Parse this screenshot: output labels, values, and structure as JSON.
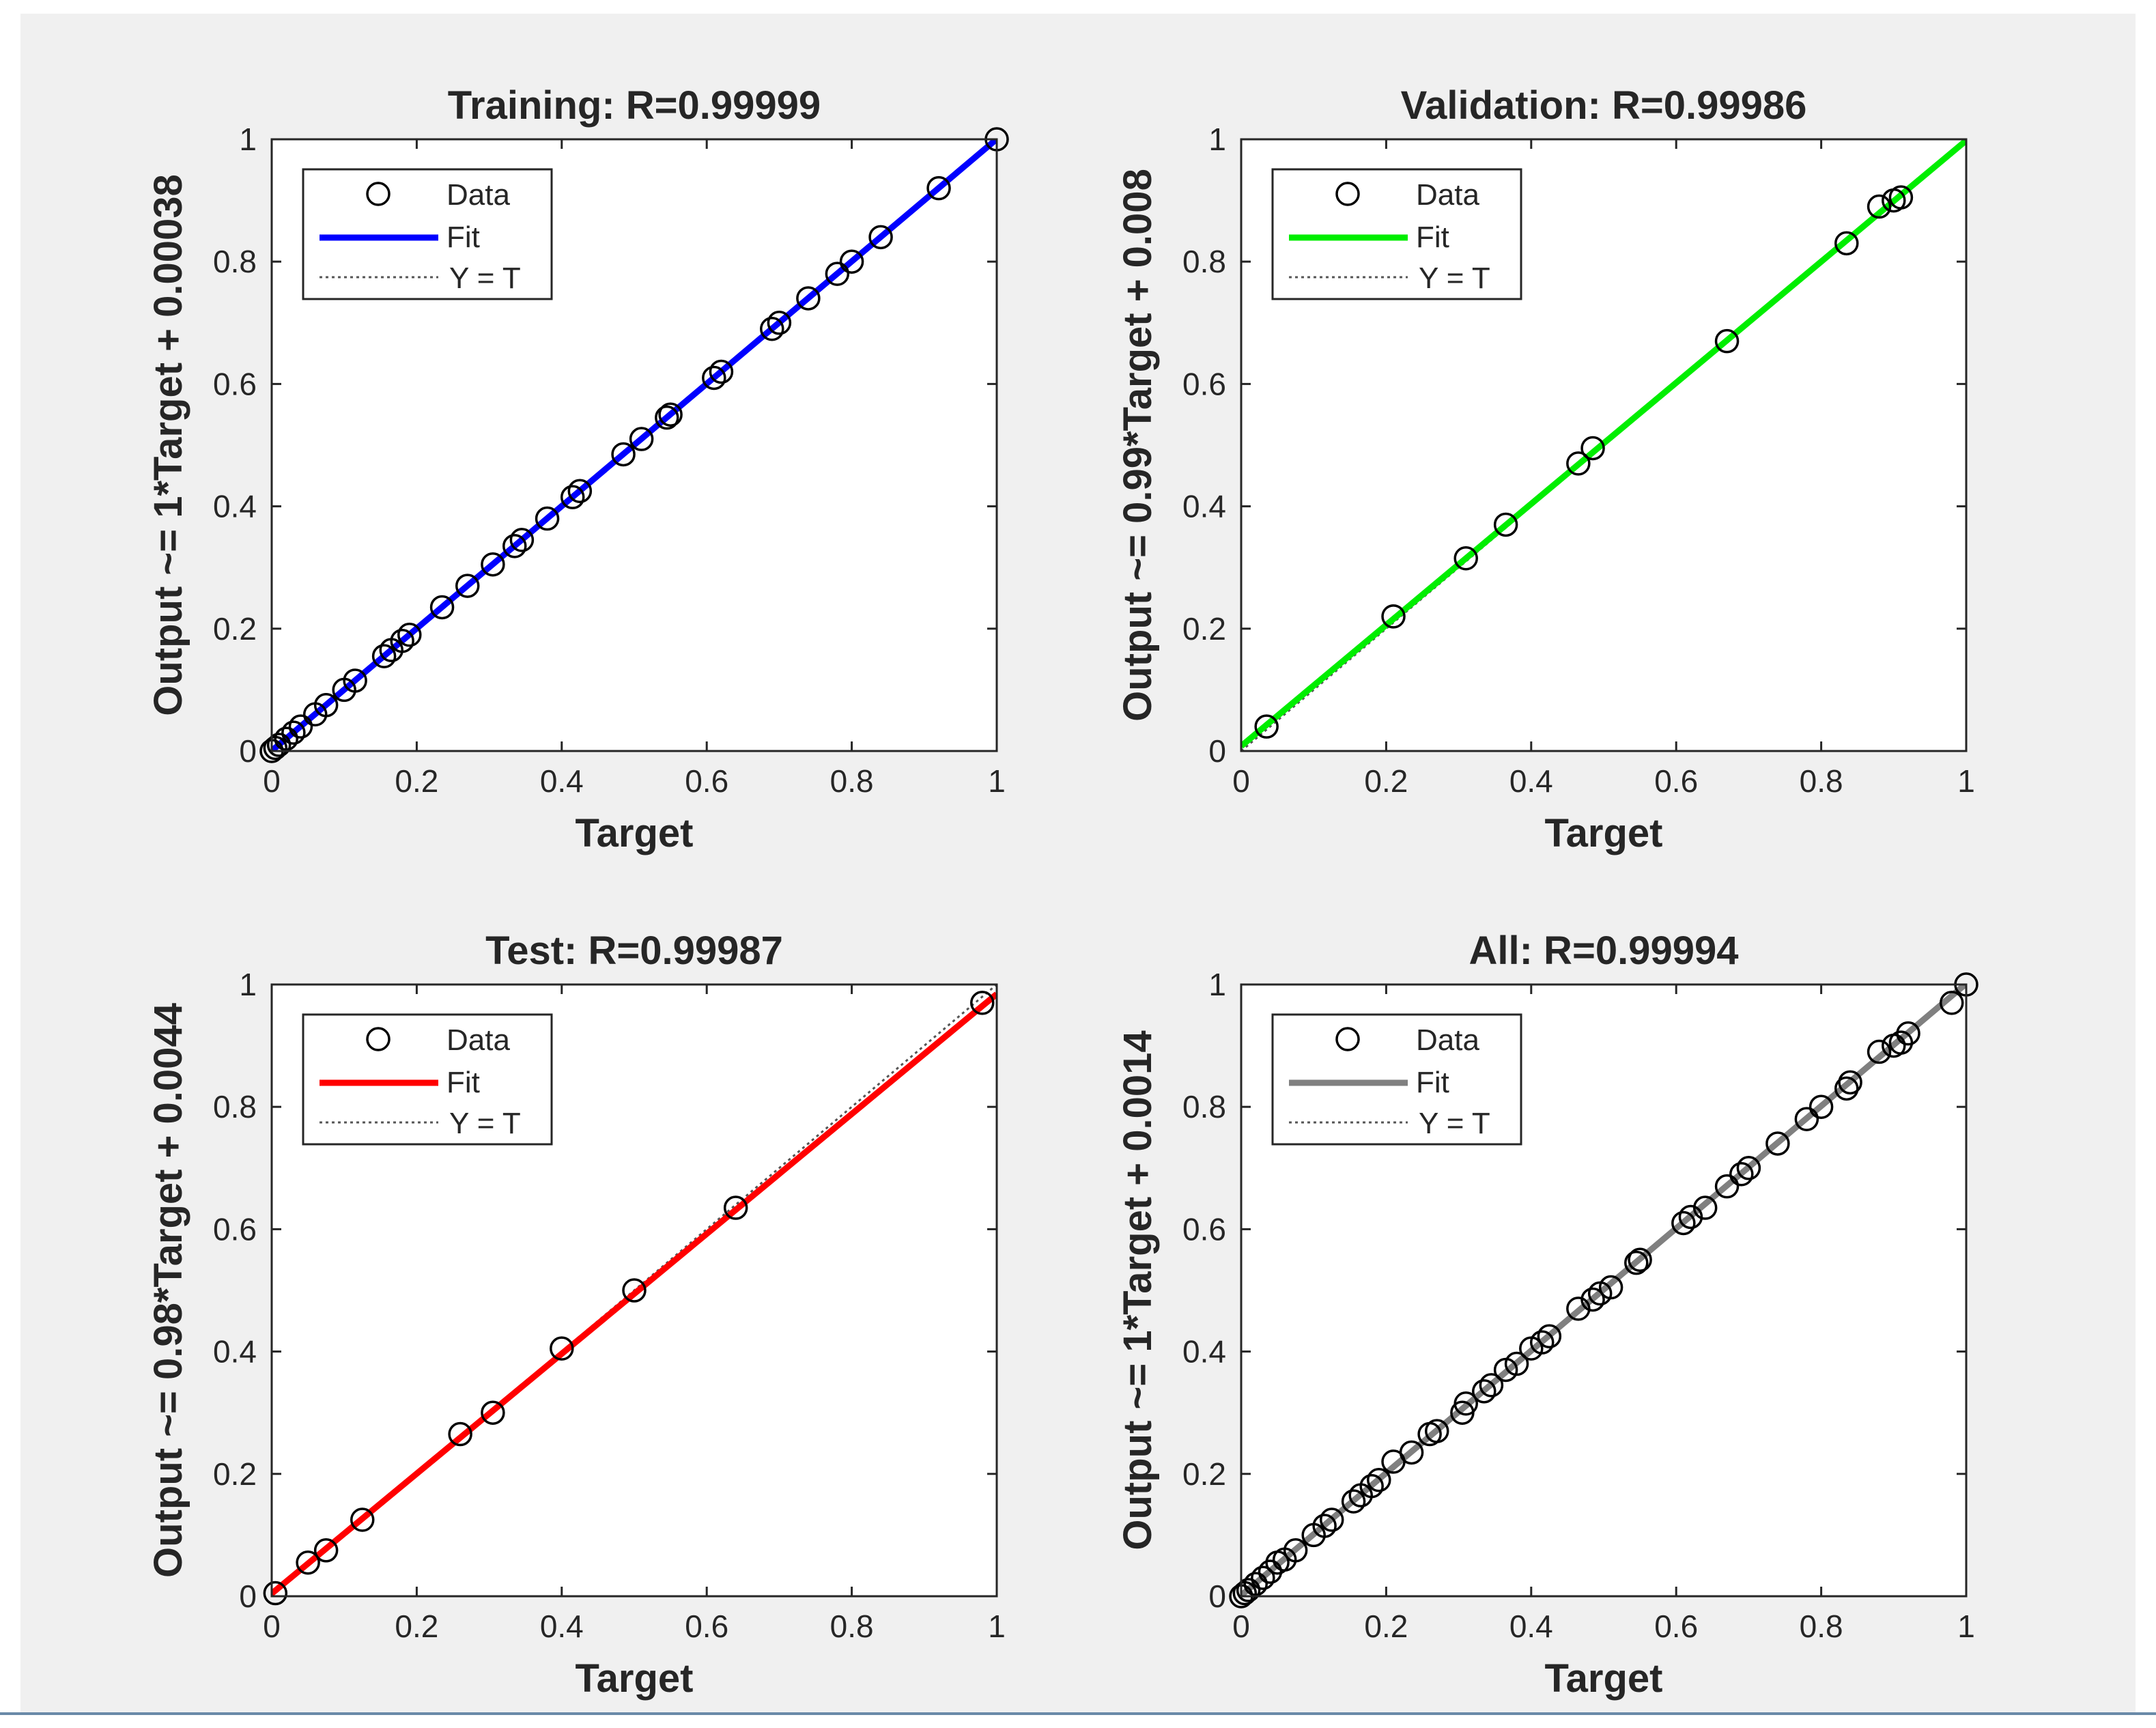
{
  "colors": {
    "figure_background": "#f0f0f0",
    "axes_background": "#ffffff",
    "axes_edge": "#262626",
    "marker": "#000000",
    "identity_line": "#555555"
  },
  "legend_labels": [
    "Data",
    "Fit",
    "Y = T"
  ],
  "chart_data": [
    {
      "type": "scatter",
      "title": "Training: R=0.99999",
      "xlabel": "Target",
      "ylabel": "Output ~= 1*Target + 0.00038",
      "xlim": [
        0,
        1
      ],
      "ylim": [
        0,
        1
      ],
      "xticks": [
        "0",
        "0.2",
        "0.4",
        "0.6",
        "0.8",
        "1"
      ],
      "yticks": [
        "0",
        "0.2",
        "0.4",
        "0.6",
        "0.8",
        "1"
      ],
      "legend_position": "top-left",
      "fit": {
        "slope": 1,
        "intercept": 0.00038,
        "color": "#0000ff"
      },
      "series": [
        {
          "name": "Data",
          "x": [
            0,
            0.005,
            0.01,
            0.02,
            0.03,
            0.04,
            0.06,
            0.075,
            0.1,
            0.115,
            0.155,
            0.165,
            0.18,
            0.19,
            0.235,
            0.27,
            0.305,
            0.335,
            0.345,
            0.38,
            0.415,
            0.425,
            0.485,
            0.51,
            0.545,
            0.55,
            0.61,
            0.62,
            0.69,
            0.7,
            0.74,
            0.78,
            0.8,
            0.84,
            0.92,
            1.0
          ],
          "y": [
            0,
            0.005,
            0.01,
            0.02,
            0.03,
            0.04,
            0.06,
            0.075,
            0.1,
            0.115,
            0.155,
            0.165,
            0.18,
            0.19,
            0.235,
            0.27,
            0.305,
            0.335,
            0.345,
            0.38,
            0.415,
            0.425,
            0.485,
            0.51,
            0.545,
            0.55,
            0.61,
            0.62,
            0.69,
            0.7,
            0.74,
            0.78,
            0.8,
            0.84,
            0.92,
            1.0
          ]
        }
      ]
    },
    {
      "type": "scatter",
      "title": "Validation: R=0.99986",
      "xlabel": "Target",
      "ylabel": "Output ~= 0.99*Target + 0.008",
      "xlim": [
        0,
        1
      ],
      "ylim": [
        0,
        1
      ],
      "xticks": [
        "0",
        "0.2",
        "0.4",
        "0.6",
        "0.8",
        "1"
      ],
      "yticks": [
        "0",
        "0.2",
        "0.4",
        "0.6",
        "0.8",
        "1"
      ],
      "legend_position": "top-left",
      "fit": {
        "slope": 0.99,
        "intercept": 0.008,
        "color": "#00ee00"
      },
      "series": [
        {
          "name": "Data",
          "x": [
            0.035,
            0.21,
            0.31,
            0.365,
            0.465,
            0.485,
            0.67,
            0.835,
            0.88,
            0.9,
            0.91
          ],
          "y": [
            0.04,
            0.22,
            0.315,
            0.37,
            0.47,
            0.495,
            0.67,
            0.83,
            0.89,
            0.9,
            0.905
          ]
        }
      ]
    },
    {
      "type": "scatter",
      "title": "Test: R=0.99987",
      "xlabel": "Target",
      "ylabel": "Output ~= 0.98*Target + 0.0044",
      "xlim": [
        0,
        1
      ],
      "ylim": [
        0,
        1
      ],
      "xticks": [
        "0",
        "0.2",
        "0.4",
        "0.6",
        "0.8",
        "1"
      ],
      "yticks": [
        "0",
        "0.2",
        "0.4",
        "0.6",
        "0.8",
        "1"
      ],
      "legend_position": "top-left",
      "fit": {
        "slope": 0.98,
        "intercept": 0.0044,
        "color": "#ff0000"
      },
      "series": [
        {
          "name": "Data",
          "x": [
            0.005,
            0.05,
            0.075,
            0.125,
            0.26,
            0.305,
            0.4,
            0.5,
            0.64,
            0.98
          ],
          "y": [
            0.005,
            0.055,
            0.075,
            0.125,
            0.265,
            0.3,
            0.405,
            0.5,
            0.635,
            0.97
          ]
        }
      ]
    },
    {
      "type": "scatter",
      "title": "All: R=0.99994",
      "xlabel": "Target",
      "ylabel": "Output ~= 1*Target + 0.0014",
      "xlim": [
        0,
        1
      ],
      "ylim": [
        0,
        1
      ],
      "xticks": [
        "0",
        "0.2",
        "0.4",
        "0.6",
        "0.8",
        "1"
      ],
      "yticks": [
        "0",
        "0.2",
        "0.4",
        "0.6",
        "0.8",
        "1"
      ],
      "legend_position": "top-left",
      "fit": {
        "slope": 1,
        "intercept": 0.0014,
        "color": "#808080"
      },
      "series": [
        {
          "name": "Data",
          "x": [
            0,
            0.005,
            0.01,
            0.02,
            0.03,
            0.04,
            0.05,
            0.06,
            0.075,
            0.1,
            0.115,
            0.125,
            0.155,
            0.165,
            0.18,
            0.19,
            0.21,
            0.235,
            0.26,
            0.27,
            0.305,
            0.31,
            0.335,
            0.345,
            0.365,
            0.38,
            0.4,
            0.415,
            0.425,
            0.465,
            0.485,
            0.495,
            0.51,
            0.545,
            0.55,
            0.61,
            0.62,
            0.64,
            0.67,
            0.69,
            0.7,
            0.74,
            0.78,
            0.8,
            0.835,
            0.84,
            0.88,
            0.9,
            0.91,
            0.92,
            0.98,
            1.0
          ],
          "y": [
            0,
            0.005,
            0.01,
            0.02,
            0.03,
            0.04,
            0.055,
            0.06,
            0.075,
            0.1,
            0.115,
            0.125,
            0.155,
            0.165,
            0.18,
            0.19,
            0.22,
            0.235,
            0.265,
            0.27,
            0.3,
            0.315,
            0.335,
            0.345,
            0.37,
            0.38,
            0.405,
            0.415,
            0.425,
            0.47,
            0.485,
            0.495,
            0.505,
            0.545,
            0.55,
            0.61,
            0.62,
            0.635,
            0.67,
            0.69,
            0.7,
            0.74,
            0.78,
            0.8,
            0.83,
            0.84,
            0.89,
            0.9,
            0.905,
            0.92,
            0.97,
            1.0
          ]
        }
      ]
    }
  ]
}
